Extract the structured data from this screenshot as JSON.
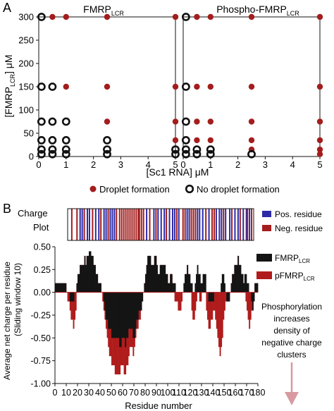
{
  "figure": {
    "panel_a": "A",
    "panel_b": "B",
    "legend_droplet": "Droplet formation",
    "legend_no_droplet": "No droplet formation",
    "charge_label_1": "Charge",
    "charge_label_2": "Plot",
    "pos_residue": "Pos. residue",
    "neg_residue": "Neg. residue",
    "phospho_note": [
      "Phosphorylation",
      "increases",
      "density of",
      "negative charge",
      "clusters"
    ]
  },
  "colors": {
    "droplet": "#a31d1d",
    "positive": "#2c2aa6",
    "negative": "#a31d1d",
    "fmrp_bar": "#141414",
    "pfmrp_bar": "#b01c1c",
    "arrow": "#d79aa0"
  },
  "chart_data": [
    {
      "type": "scatter",
      "title_main": "FMRP",
      "title_sub": "LCR",
      "xlabel": "[Sc1 RNA] μM",
      "ylabel_main": "[FMRP",
      "ylabel_sub": "LCR",
      "ylabel_tail": "] μM",
      "xlim": [
        0,
        5
      ],
      "ylim": [
        0,
        300
      ],
      "xticks": [
        0,
        1,
        2,
        3,
        4,
        5
      ],
      "yticks": [
        0,
        50,
        100,
        150,
        200,
        250,
        300
      ],
      "series": [
        {
          "name": "Droplet formation",
          "points": [
            [
              0.5,
              300
            ],
            [
              1,
              300
            ],
            [
              2.5,
              300
            ],
            [
              5,
              300
            ],
            [
              1,
              150
            ],
            [
              2.5,
              150
            ],
            [
              5,
              150
            ],
            [
              2.5,
              75
            ],
            [
              5,
              75
            ],
            [
              5,
              35
            ]
          ]
        },
        {
          "name": "No droplet formation",
          "points": [
            [
              0.1,
              300
            ],
            [
              0.1,
              150
            ],
            [
              0.5,
              150
            ],
            [
              0.1,
              75
            ],
            [
              0.5,
              75
            ],
            [
              1,
              75
            ],
            [
              0.1,
              35
            ],
            [
              0.5,
              35
            ],
            [
              1,
              35
            ],
            [
              2.5,
              35
            ],
            [
              0.1,
              15
            ],
            [
              0.5,
              15
            ],
            [
              1,
              15
            ],
            [
              2.5,
              15
            ],
            [
              5,
              15
            ],
            [
              0.1,
              5
            ],
            [
              0.5,
              5
            ],
            [
              1,
              5
            ],
            [
              2.5,
              5
            ],
            [
              5,
              5
            ]
          ]
        }
      ]
    },
    {
      "type": "scatter",
      "title_main": "Phospho-FMRP",
      "title_sub": "LCR",
      "xlabel": "[Sc1 RNA] μM",
      "xlim": [
        0,
        5
      ],
      "ylim": [
        0,
        300
      ],
      "xticks": [
        0,
        1,
        2,
        3,
        4,
        5
      ],
      "series": [
        {
          "name": "Droplet formation",
          "points": [
            [
              0.5,
              300
            ],
            [
              1,
              300
            ],
            [
              2.5,
              300
            ],
            [
              5,
              300
            ],
            [
              0.5,
              150
            ],
            [
              1,
              150
            ],
            [
              2.5,
              150
            ],
            [
              5,
              150
            ],
            [
              0.5,
              75
            ],
            [
              1,
              75
            ],
            [
              2.5,
              75
            ],
            [
              5,
              75
            ],
            [
              0.5,
              35
            ],
            [
              1,
              35
            ],
            [
              2.5,
              35
            ],
            [
              5,
              35
            ],
            [
              2.5,
              15
            ],
            [
              5,
              15
            ],
            [
              5,
              5
            ]
          ]
        },
        {
          "name": "No droplet formation",
          "points": [
            [
              0.1,
              300
            ],
            [
              0.1,
              150
            ],
            [
              0.1,
              75
            ],
            [
              0.1,
              35
            ],
            [
              0.1,
              15
            ],
            [
              0.5,
              15
            ],
            [
              1,
              15
            ],
            [
              0.1,
              5
            ],
            [
              0.5,
              5
            ],
            [
              1,
              5
            ],
            [
              2.5,
              5
            ]
          ]
        }
      ]
    },
    {
      "type": "bar",
      "title": "Charge Plot",
      "xlim": [
        1,
        180
      ],
      "positive_residues": [
        13,
        15,
        20,
        22,
        28,
        31,
        36,
        38,
        42,
        44,
        46,
        77,
        84,
        88,
        91,
        94,
        99,
        102,
        104,
        108,
        116,
        118,
        126,
        128,
        131,
        137,
        144,
        147,
        149,
        153,
        157,
        162,
        165,
        170,
        173,
        176
      ],
      "negative_residues": [
        5,
        10,
        17,
        25,
        33,
        40,
        48,
        51,
        53,
        55,
        57,
        59,
        61,
        63,
        65,
        67,
        69,
        70,
        72,
        74,
        80,
        86,
        96,
        106,
        112,
        114,
        120,
        122,
        124,
        134,
        140,
        142,
        151,
        159,
        167,
        174,
        178
      ]
    },
    {
      "type": "bar",
      "xlabel": "Residue number",
      "ylabel_1": "Average net charge per residue",
      "ylabel_2": "(Sliding window 10)",
      "xlim": [
        0,
        180
      ],
      "ylim": [
        -1.0,
        0.5
      ],
      "xticks": [
        0,
        10,
        20,
        30,
        40,
        50,
        60,
        70,
        80,
        90,
        100,
        110,
        120,
        130,
        140,
        150,
        160,
        170,
        180
      ],
      "yticks": [
        -1.0,
        -0.75,
        -0.5,
        -0.25,
        0.0,
        0.25,
        0.5
      ],
      "ytick_labels": [
        "-1.00",
        "-0.75",
        "-0.50",
        "-0.25",
        "0.00",
        "0.25",
        "0.50"
      ],
      "series": [
        {
          "name": "FMRP",
          "name_sub": "LCR",
          "values": [
            0.1,
            0.1,
            0.1,
            0.1,
            0.1,
            0.1,
            0.1,
            0.1,
            0.1,
            0.1,
            0.0,
            0.0,
            0.0,
            -0.1,
            -0.1,
            -0.1,
            -0.1,
            0.0,
            0.0,
            0.1,
            0.2,
            0.2,
            0.3,
            0.3,
            0.3,
            0.3,
            0.4,
            0.3,
            0.4,
            0.4,
            0.45,
            0.45,
            0.4,
            0.4,
            0.3,
            0.3,
            0.2,
            0.2,
            0.1,
            0.1,
            0.1,
            0.0,
            0.0,
            -0.1,
            -0.2,
            -0.3,
            -0.3,
            -0.4,
            -0.4,
            -0.4,
            -0.5,
            -0.5,
            -0.5,
            -0.5,
            -0.5,
            -0.5,
            -0.5,
            -0.6,
            -0.6,
            -0.5,
            -0.5,
            -0.5,
            -0.6,
            -0.5,
            -0.5,
            -0.4,
            -0.4,
            -0.4,
            -0.4,
            -0.5,
            -0.5,
            -0.4,
            -0.3,
            -0.3,
            -0.2,
            -0.2,
            -0.2,
            -0.1,
            0.0,
            0.1,
            0.2,
            0.3,
            0.4,
            0.4,
            0.4,
            0.3,
            0.3,
            0.3,
            0.4,
            0.4,
            0.3,
            0.2,
            0.2,
            0.3,
            0.3,
            0.3,
            0.3,
            0.3,
            0.2,
            0.2,
            0.1,
            0.1,
            0.2,
            0.2,
            0.1,
            0.1,
            0.1,
            0.0,
            0.0,
            0.0,
            0.0,
            0.0,
            0.0,
            0.0,
            0.1,
            0.2,
            0.2,
            0.3,
            0.2,
            0.2,
            0.1,
            0.1,
            0.0,
            0.0,
            0.1,
            0.2,
            0.3,
            0.2,
            0.2,
            0.1,
            0.1,
            0.2,
            0.2,
            0.2,
            0.0,
            0.0,
            -0.1,
            -0.1,
            -0.1,
            -0.1,
            -0.1,
            0.0,
            0.0,
            0.0,
            0.0,
            0.0,
            0.0,
            0.1,
            0.2,
            0.2,
            0.1,
            0.0,
            -0.1,
            -0.1,
            -0.1,
            0.0,
            0.1,
            0.2,
            0.2,
            0.3,
            0.3,
            0.3,
            0.4,
            0.3,
            0.3,
            0.2,
            0.2,
            0.1,
            0.2,
            0.2,
            0.1,
            0.1,
            0.0,
            0.0,
            -0.1,
            -0.2,
            -0.1,
            0.1,
            0.1,
            0.1
          ]
        },
        {
          "name": "pFMRP",
          "name_sub": "LCR",
          "values": [
            0.1,
            0.1,
            0.1,
            0.1,
            0.1,
            0.1,
            0.1,
            0.1,
            0.1,
            0.1,
            0.0,
            -0.1,
            -0.1,
            -0.2,
            -0.3,
            -0.3,
            -0.4,
            -0.3,
            -0.2,
            0.0,
            0.2,
            0.2,
            0.3,
            0.3,
            0.3,
            0.3,
            0.4,
            0.3,
            0.4,
            0.4,
            0.45,
            0.45,
            0.4,
            0.4,
            0.3,
            0.3,
            0.2,
            0.2,
            0.1,
            0.1,
            0.1,
            0.0,
            -0.1,
            -0.2,
            -0.3,
            -0.4,
            -0.5,
            -0.6,
            -0.7,
            -0.7,
            -0.8,
            -0.8,
            -0.8,
            -0.9,
            -0.9,
            -0.9,
            -0.9,
            -0.9,
            -0.8,
            -0.8,
            -0.8,
            -0.9,
            -0.9,
            -0.8,
            -0.8,
            -0.7,
            -0.6,
            -0.6,
            -0.6,
            -0.7,
            -0.6,
            -0.5,
            -0.4,
            -0.4,
            -0.3,
            -0.3,
            -0.2,
            -0.1,
            0.0,
            0.1,
            0.2,
            0.3,
            0.4,
            0.4,
            0.4,
            0.3,
            0.3,
            0.3,
            0.4,
            0.4,
            0.3,
            0.2,
            0.2,
            0.3,
            0.3,
            0.3,
            0.3,
            0.3,
            0.2,
            0.2,
            0.1,
            0.1,
            0.2,
            0.2,
            0.1,
            0.0,
            -0.1,
            -0.1,
            -0.1,
            -0.2,
            -0.2,
            -0.2,
            -0.1,
            0.0,
            0.1,
            0.2,
            0.2,
            0.3,
            0.2,
            0.1,
            0.0,
            -0.2,
            -0.3,
            -0.3,
            -0.2,
            -0.1,
            0.0,
            0.0,
            -0.1,
            -0.1,
            0.0,
            0.1,
            0.1,
            0.0,
            -0.2,
            -0.3,
            -0.4,
            -0.4,
            -0.3,
            -0.3,
            -0.2,
            -0.2,
            -0.3,
            -0.4,
            -0.5,
            -0.6,
            -0.7,
            -0.6,
            -0.5,
            -0.3,
            -0.2,
            -0.1,
            -0.1,
            -0.1,
            -0.1,
            0.0,
            0.1,
            0.2,
            0.2,
            0.3,
            0.3,
            0.3,
            0.4,
            0.3,
            0.3,
            0.2,
            0.2,
            0.1,
            0.0,
            -0.1,
            -0.2,
            -0.3,
            -0.4,
            -0.3,
            -0.2,
            -0.1,
            0.0,
            0.1,
            0.1,
            0.1
          ]
        }
      ]
    }
  ]
}
